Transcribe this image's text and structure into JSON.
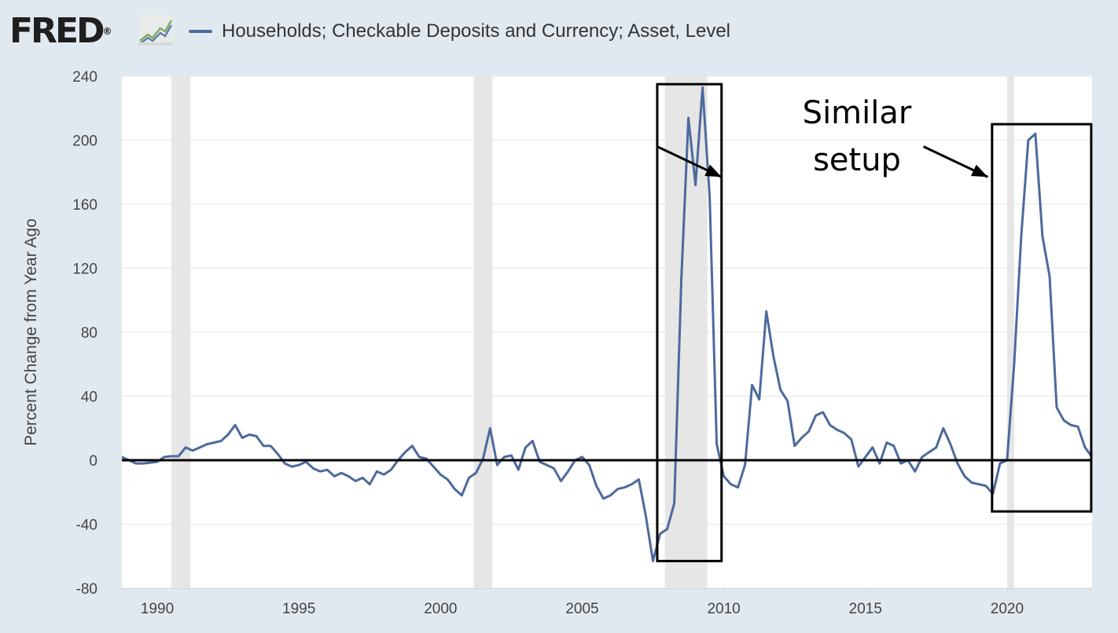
{
  "header": {
    "logo_text": "FRED",
    "logo_mark": "®",
    "logo_icon": "line-chart-icon"
  },
  "chart_data": {
    "type": "line",
    "title": "",
    "xlabel": "",
    "ylabel": "Percent Change from Year Ago",
    "xlim": [
      1988.75,
      2023.0
    ],
    "ylim": [
      -80,
      240
    ],
    "yticks": [
      240,
      200,
      160,
      120,
      80,
      40,
      0,
      -40,
      -80
    ],
    "ytick_labels": [
      "240",
      "200",
      "160",
      "120",
      "80",
      "40",
      "0",
      "-40",
      "-80"
    ],
    "xticks": [
      1990,
      1995,
      2000,
      2005,
      2010,
      2015,
      2020
    ],
    "xtick_labels": [
      "1990",
      "1995",
      "2000",
      "2005",
      "2010",
      "2015",
      "2020"
    ],
    "grid": "horizontal",
    "legend": "top-left",
    "colors": {
      "line": "#4c6a9c",
      "recession": "#e6e6e6",
      "grid": "#e5e5e5",
      "annotation": "#000000"
    },
    "recessions": [
      [
        1990.5,
        1991.17
      ],
      [
        2001.17,
        2001.83
      ],
      [
        2007.92,
        2009.42
      ],
      [
        2020.0,
        2020.25
      ]
    ],
    "series": [
      {
        "name": "Households; Checkable Deposits and Currency; Asset, Level",
        "x": [
          1988.75,
          1989.0,
          1989.25,
          1989.5,
          1989.75,
          1990.0,
          1990.25,
          1990.5,
          1990.75,
          1991.0,
          1991.25,
          1991.5,
          1991.75,
          1992.0,
          1992.25,
          1992.5,
          1992.75,
          1993.0,
          1993.25,
          1993.5,
          1993.75,
          1994.0,
          1994.25,
          1994.5,
          1994.75,
          1995.0,
          1995.25,
          1995.5,
          1995.75,
          1996.0,
          1996.25,
          1996.5,
          1996.75,
          1997.0,
          1997.25,
          1997.5,
          1997.75,
          1998.0,
          1998.25,
          1998.5,
          1998.75,
          1999.0,
          1999.25,
          1999.5,
          1999.75,
          2000.0,
          2000.25,
          2000.5,
          2000.75,
          2001.0,
          2001.25,
          2001.5,
          2001.75,
          2002.0,
          2002.25,
          2002.5,
          2002.75,
          2003.0,
          2003.25,
          2003.5,
          2003.75,
          2004.0,
          2004.25,
          2004.5,
          2004.75,
          2005.0,
          2005.25,
          2005.5,
          2005.75,
          2006.0,
          2006.25,
          2006.5,
          2006.75,
          2007.0,
          2007.25,
          2007.5,
          2007.75,
          2008.0,
          2008.25,
          2008.5,
          2008.75,
          2009.0,
          2009.25,
          2009.5,
          2009.75,
          2010.0,
          2010.25,
          2010.5,
          2010.75,
          2011.0,
          2011.25,
          2011.5,
          2011.75,
          2012.0,
          2012.25,
          2012.5,
          2012.75,
          2013.0,
          2013.25,
          2013.5,
          2013.75,
          2014.0,
          2014.25,
          2014.5,
          2014.75,
          2015.0,
          2015.25,
          2015.5,
          2015.75,
          2016.0,
          2016.25,
          2016.5,
          2016.75,
          2017.0,
          2017.25,
          2017.5,
          2017.75,
          2018.0,
          2018.25,
          2018.5,
          2018.75,
          2019.0,
          2019.25,
          2019.5,
          2019.75,
          2020.0,
          2020.25,
          2020.5,
          2020.75,
          2021.0,
          2021.25,
          2021.5,
          2021.75,
          2022.0,
          2022.25,
          2022.5,
          2022.75,
          2023.0
        ],
        "values": [
          2,
          0,
          -2,
          -2,
          -1.5,
          -1,
          2,
          2.5,
          2.5,
          8,
          6,
          8,
          10,
          11,
          12,
          16,
          22,
          14,
          16,
          15,
          9,
          9,
          4,
          -2,
          -4,
          -3,
          -1,
          -5,
          -7,
          -6,
          -10,
          -8,
          -10,
          -13,
          -11,
          -15,
          -7,
          -9,
          -6,
          0,
          5,
          9,
          2,
          1,
          -4,
          -9,
          -12,
          -18,
          -22,
          -11,
          -8,
          1,
          20,
          -3,
          2,
          3,
          -6,
          8,
          12,
          -1,
          -3,
          -5,
          -13,
          -7,
          0,
          2,
          -3,
          -16,
          -24,
          -22,
          -18,
          -17,
          -15,
          -12,
          -35,
          -63,
          -46,
          -43,
          -27,
          113,
          214,
          172,
          233,
          165,
          10,
          -10,
          -15,
          -17,
          -3,
          47,
          38,
          93,
          65,
          44,
          37,
          9,
          14,
          18,
          28,
          30,
          22,
          19,
          17,
          13,
          -4,
          2,
          8,
          -2,
          11,
          9,
          -2,
          0,
          -7,
          2,
          5,
          8,
          20,
          10,
          -2,
          -10,
          -14,
          -15,
          -16,
          -21,
          -2,
          0,
          60,
          140,
          200,
          204,
          140,
          115,
          33,
          25,
          22,
          21,
          8,
          2
        ]
      }
    ],
    "annotations": {
      "text_line1": "Similar",
      "text_line2": "setup",
      "boxes": [
        {
          "x": [
            2007.65,
            2009.92
          ],
          "y": [
            -63,
            235
          ]
        },
        {
          "x": [
            2019.47,
            2022.97
          ],
          "y": [
            -32,
            210
          ]
        }
      ],
      "arrows": [
        {
          "from": [
            2007.65,
            196
          ],
          "to": [
            2009.92,
            177
          ]
        },
        {
          "from": [
            2017.05,
            196
          ],
          "to": [
            2019.32,
            177
          ]
        }
      ]
    }
  }
}
